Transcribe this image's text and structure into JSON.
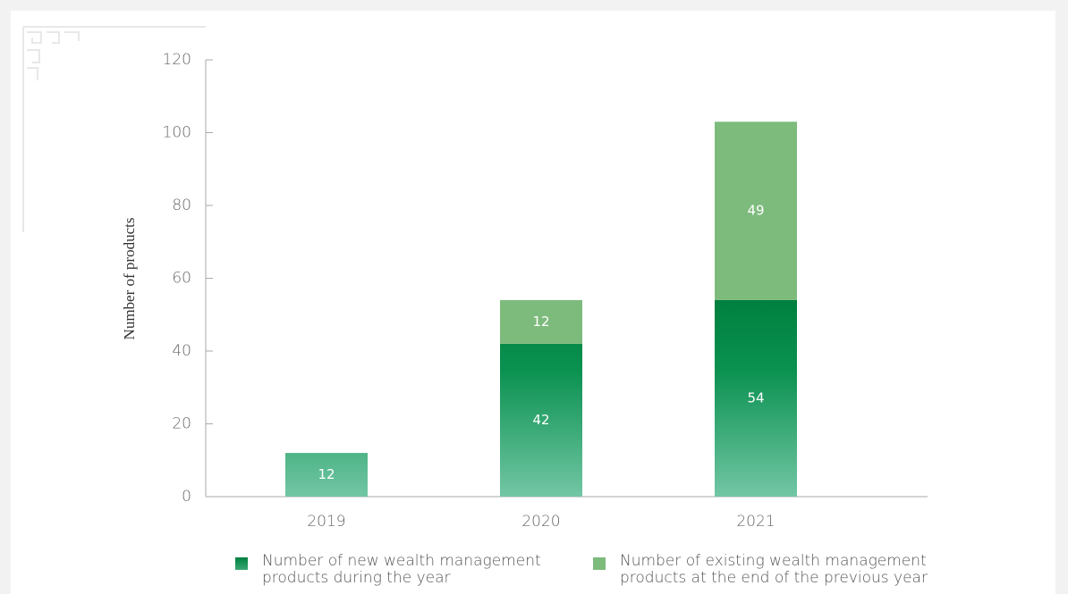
{
  "chart_data": {
    "type": "stacked_bar",
    "y_label": "Number of products",
    "categories": [
      "2019",
      "2020",
      "2021"
    ],
    "series": [
      {
        "name": "Number of new wealth management products during the year",
        "color": "#00803f",
        "values": [
          12,
          42,
          54
        ]
      },
      {
        "name": "Number of existing wealth management products at the end of the previous year",
        "color": "#7dbb7c",
        "values": [
          null,
          12,
          49
        ]
      }
    ],
    "ylim": [
      0,
      120
    ],
    "yticks": [
      0,
      20,
      40,
      60,
      80,
      100,
      120
    ],
    "grid": false
  }
}
